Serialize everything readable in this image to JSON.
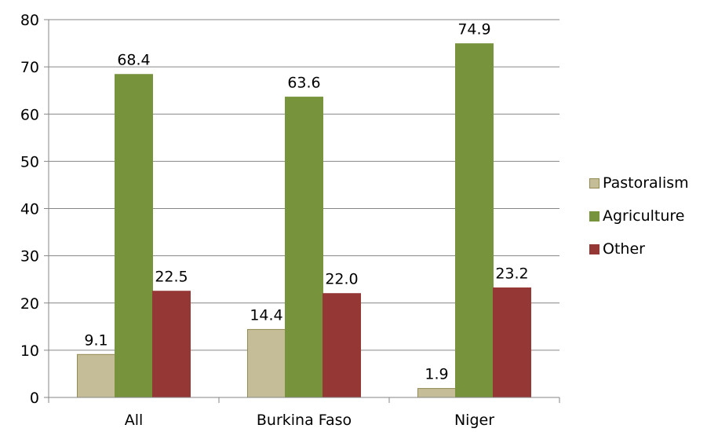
{
  "chart_data": {
    "type": "bar",
    "categories": [
      "All",
      "Burkina Faso",
      "Niger"
    ],
    "series": [
      {
        "name": "Pastoralism",
        "values": [
          9.1,
          14.4,
          1.9
        ],
        "labels": [
          "9.1",
          "14.4",
          "1.9"
        ],
        "color": "#c4bd97",
        "border": "#948a54"
      },
      {
        "name": "Agriculture",
        "values": [
          68.4,
          63.6,
          74.9
        ],
        "labels": [
          "68.4",
          "63.6",
          "74.9"
        ],
        "color": "#77933c",
        "border": "#77933c"
      },
      {
        "name": "Other",
        "values": [
          22.5,
          22.0,
          23.2
        ],
        "labels": [
          "22.5",
          "22.0",
          "23.2"
        ],
        "color": "#953735",
        "border": "#953735"
      }
    ],
    "ylim": [
      0,
      80
    ],
    "yticks": [
      0,
      10,
      20,
      30,
      40,
      50,
      60,
      70,
      80
    ],
    "grid": true,
    "legend_position": "right",
    "title": "",
    "xlabel": "",
    "ylabel": ""
  }
}
